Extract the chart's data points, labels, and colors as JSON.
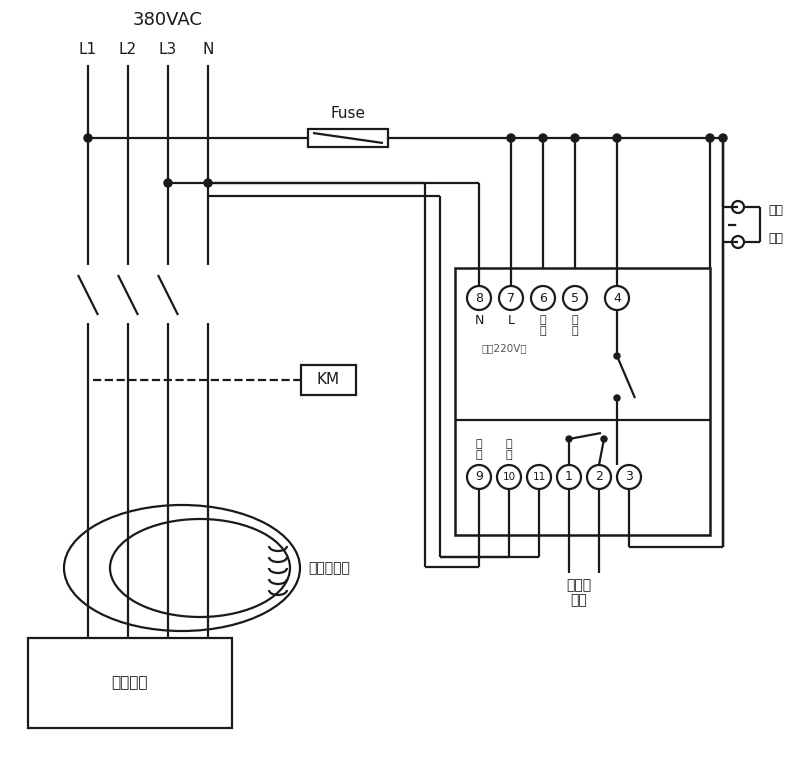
{
  "bg_color": "#ffffff",
  "line_color": "#1a1a1a",
  "text_color": "#1a1a1a",
  "label_380": "380VAC",
  "label_L1": "L1",
  "label_L2": "L2",
  "label_L3": "L3",
  "label_N": "N",
  "label_fuse": "Fuse",
  "label_KM": "KM",
  "label_zero_ct": "零序互感器",
  "label_user_device": "用户设备",
  "label_alarm1": "接声光",
  "label_alarm2": "报警",
  "label_self_lock1": "自锁",
  "label_self_lock2": "开关",
  "label_power": "电源220V～",
  "label_N_pin": "N",
  "label_L_pin": "L",
  "label_test1a": "试",
  "label_test1b": "验",
  "label_test2a": "试",
  "label_test2b": "验",
  "label_sig1a": "信",
  "label_sig1b": "号",
  "label_sig2a": "信",
  "label_sig2b": "号",
  "pins_top": [
    "8",
    "7",
    "6",
    "5",
    "4"
  ],
  "pins_bottom": [
    "9",
    "10",
    "11",
    "1",
    "2",
    "3"
  ]
}
